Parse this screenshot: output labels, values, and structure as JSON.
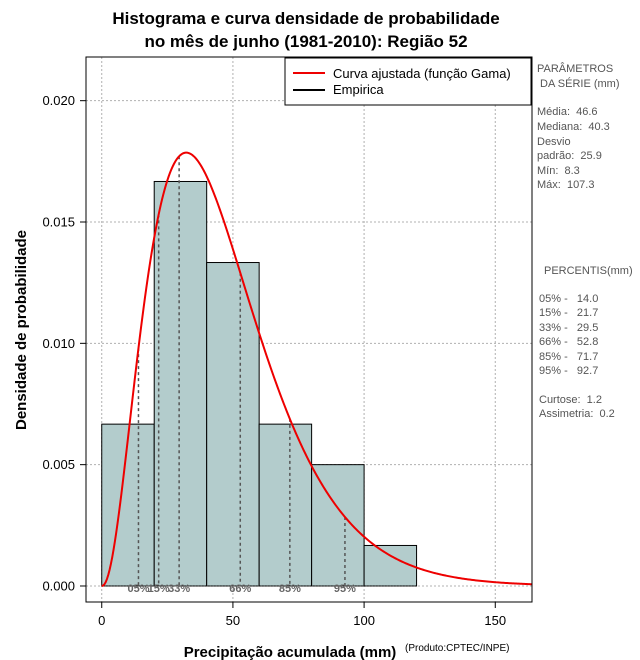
{
  "chart_data": {
    "type": "histogram",
    "title": [
      "Histograma e curva densidade de probabilidade",
      "no mês de junho (1981-2010): Região 52"
    ],
    "xlabel": "Precipitação acumulada (mm)",
    "ylabel": "Densidade de probabilidade",
    "credit": "(Produto:CPTEC/INPE)",
    "xlim": [
      -6,
      164
    ],
    "ylim": [
      -0.00066,
      0.0218
    ],
    "x_ticks": [
      0,
      50,
      100,
      150
    ],
    "y_ticks": [
      {
        "value": 0.0,
        "label": "0.000"
      },
      {
        "value": 0.005,
        "label": "0.005"
      },
      {
        "value": 0.01,
        "label": "0.010"
      },
      {
        "value": 0.015,
        "label": "0.015"
      },
      {
        "value": 0.02,
        "label": "0.020"
      }
    ],
    "grid": true,
    "bin_edges": [
      0,
      20,
      40,
      60,
      80,
      100,
      120
    ],
    "bars": [
      0.00667,
      0.01667,
      0.01333,
      0.00667,
      0.005,
      0.00167
    ],
    "bar_color": "#b3cccc",
    "curve": {
      "shape": 3.239,
      "scale": 14.387,
      "x_max": 164,
      "color": "#ee0000"
    },
    "percentiles": [
      {
        "label": "05%",
        "value": 14.0
      },
      {
        "label": "15%",
        "value": 21.7
      },
      {
        "label": "33%",
        "value": 29.5
      },
      {
        "label": "66%",
        "value": 52.8
      },
      {
        "label": "85%",
        "value": 71.7
      },
      {
        "label": "95%",
        "value": 92.7
      }
    ],
    "legend": {
      "position": "top-right",
      "entries": [
        {
          "label": "Curva ajustada (função Gama)",
          "color": "#ee0000"
        },
        {
          "label": "Empirica",
          "color": "#000000"
        }
      ]
    },
    "side_panel": {
      "params_title": [
        "PARÂMETROS",
        " DA SÉRIE (mm)"
      ],
      "params": [
        "Média:  46.6",
        "Mediana:  40.3",
        "Desvio",
        "padrão:  25.9",
        "Mín:  8.3",
        "Máx:  107.3"
      ],
      "percentis_title": "PERCENTIS(mm)",
      "percentis": [
        "05% -   14.0",
        "15% -   21.7",
        "33% -   29.5",
        "66% -   52.8",
        "85% -   71.7",
        "95% -   92.7"
      ],
      "shape": [
        "Curtose:  1.2",
        "Assimetria:  0.2"
      ]
    }
  }
}
